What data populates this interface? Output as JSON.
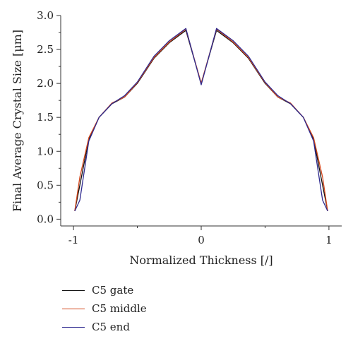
{
  "chart_data": {
    "type": "line",
    "xlabel": "Normalized Thickness [/]",
    "ylabel": "Final Average Crystal Size [μm]",
    "xlim": [
      -1.1,
      1.1
    ],
    "ylim": [
      -0.1,
      3.0
    ],
    "x_ticks": [
      -1,
      0,
      1
    ],
    "x_tick_labels": [
      "-1",
      "0",
      "1"
    ],
    "y_ticks": [
      0.0,
      0.5,
      1.0,
      1.5,
      2.0,
      2.5,
      3.0
    ],
    "y_tick_labels": [
      "0.0",
      "0.5",
      "1.0",
      "1.5",
      "2.0",
      "2.5",
      "3.0"
    ],
    "grid": false,
    "legend_position": "bottom-left",
    "series": [
      {
        "name": "C5 gate",
        "color": "#111111",
        "x": [
          -0.99,
          -0.95,
          -0.88,
          -0.8,
          -0.7,
          -0.6,
          -0.5,
          -0.37,
          -0.25,
          -0.12,
          0.0,
          0.12,
          0.25,
          0.37,
          0.5,
          0.6,
          0.7,
          0.8,
          0.88,
          0.95,
          0.99
        ],
        "y": [
          0.12,
          0.5,
          1.18,
          1.5,
          1.7,
          1.8,
          2.0,
          2.37,
          2.6,
          2.78,
          2.0,
          2.78,
          2.6,
          2.37,
          2.0,
          1.8,
          1.7,
          1.5,
          1.18,
          0.5,
          0.12
        ]
      },
      {
        "name": "C5 middle",
        "color": "#d4471c",
        "x": [
          -0.99,
          -0.95,
          -0.88,
          -0.8,
          -0.7,
          -0.6,
          -0.5,
          -0.37,
          -0.25,
          -0.12,
          0.0,
          0.12,
          0.25,
          0.37,
          0.5,
          0.6,
          0.7,
          0.8,
          0.88,
          0.95,
          0.99
        ],
        "y": [
          0.12,
          0.62,
          1.2,
          1.5,
          1.71,
          1.8,
          2.01,
          2.38,
          2.61,
          2.8,
          2.0,
          2.8,
          2.61,
          2.38,
          2.01,
          1.8,
          1.71,
          1.5,
          1.2,
          0.62,
          0.12
        ]
      },
      {
        "name": "C5 end",
        "color": "#2e2a8f",
        "x": [
          -0.99,
          -0.95,
          -0.88,
          -0.8,
          -0.7,
          -0.6,
          -0.5,
          -0.37,
          -0.25,
          -0.12,
          0.0,
          0.12,
          0.25,
          0.37,
          0.5,
          0.6,
          0.7,
          0.8,
          0.88,
          0.95,
          0.99
        ],
        "y": [
          0.12,
          0.28,
          1.15,
          1.5,
          1.7,
          1.82,
          2.02,
          2.4,
          2.63,
          2.81,
          1.98,
          2.81,
          2.63,
          2.4,
          2.02,
          1.82,
          1.7,
          1.5,
          1.15,
          0.28,
          0.12
        ]
      }
    ]
  }
}
